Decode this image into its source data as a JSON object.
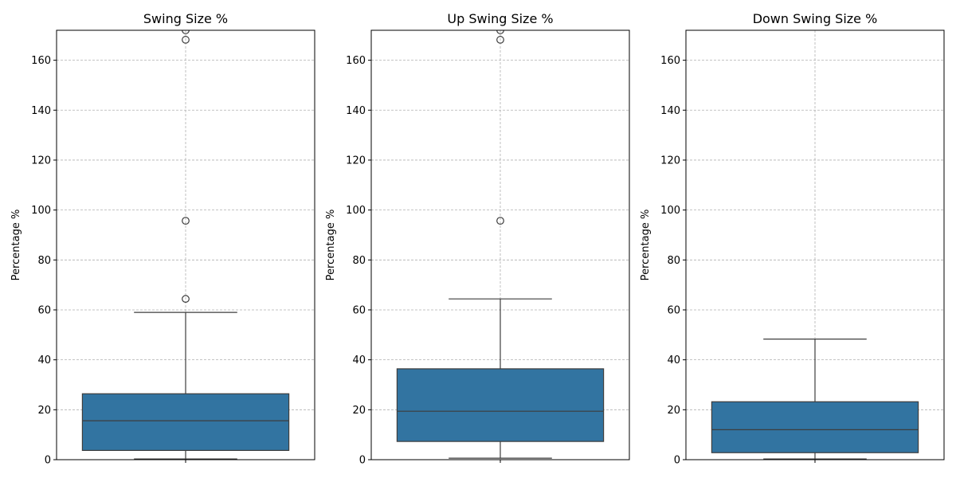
{
  "chart_data": [
    {
      "type": "box",
      "title": "Swing Size %",
      "xlabel": "",
      "ylabel": "Percentage %",
      "ylim": [
        0,
        172
      ],
      "yticks": [
        0,
        20,
        40,
        60,
        80,
        100,
        120,
        140,
        160
      ],
      "grid": true,
      "color": "#3274a1",
      "stats": {
        "whislo": 0.3,
        "q1": 3.7,
        "med": 15.6,
        "q3": 26.4,
        "whishi": 59.0
      },
      "fliers": [
        64.4,
        95.7,
        168.2,
        172.0
      ]
    },
    {
      "type": "box",
      "title": "Up Swing Size %",
      "xlabel": "",
      "ylabel": "Percentage %",
      "ylim": [
        0,
        172
      ],
      "yticks": [
        0,
        20,
        40,
        60,
        80,
        100,
        120,
        140,
        160
      ],
      "grid": true,
      "color": "#3274a1",
      "stats": {
        "whislo": 0.6,
        "q1": 7.3,
        "med": 19.4,
        "q3": 36.4,
        "whishi": 64.4
      },
      "fliers": [
        95.7,
        168.2,
        172.0
      ]
    },
    {
      "type": "box",
      "title": "Down Swing Size %",
      "xlabel": "",
      "ylabel": "Percentage %",
      "ylim": [
        0,
        172
      ],
      "yticks": [
        0,
        20,
        40,
        60,
        80,
        100,
        120,
        140,
        160
      ],
      "grid": true,
      "color": "#3274a1",
      "stats": {
        "whislo": 0.3,
        "q1": 2.8,
        "med": 12.0,
        "q3": 23.2,
        "whishi": 48.3
      },
      "fliers": []
    }
  ]
}
